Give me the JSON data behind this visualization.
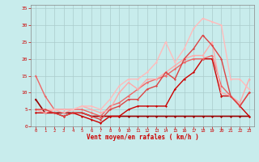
{
  "background_color": "#c8ecec",
  "grid_color": "#aacccc",
  "xlabel": "Vent moyen/en rafales ( km/h )",
  "xlabel_color": "#cc0000",
  "tick_color": "#cc0000",
  "spine_color": "#888888",
  "xlim": [
    -0.5,
    23.5
  ],
  "ylim": [
    0,
    36
  ],
  "yticks": [
    0,
    5,
    10,
    15,
    20,
    25,
    30,
    35
  ],
  "xticks": [
    0,
    1,
    2,
    3,
    4,
    5,
    6,
    7,
    8,
    9,
    10,
    11,
    12,
    13,
    14,
    15,
    16,
    17,
    18,
    19,
    20,
    21,
    22,
    23
  ],
  "series": [
    {
      "x": [
        0,
        1,
        2,
        3,
        4,
        5,
        6,
        7,
        8,
        9,
        10,
        11,
        12,
        13,
        14,
        15,
        16,
        17,
        18,
        19,
        20,
        21,
        22,
        23
      ],
      "y": [
        8,
        4,
        4,
        4,
        4,
        4,
        3,
        3,
        3,
        3,
        3,
        3,
        3,
        3,
        3,
        3,
        3,
        3,
        3,
        3,
        3,
        3,
        3,
        3
      ],
      "color": "#990000",
      "lw": 1.2,
      "marker": "D",
      "ms": 1.5
    },
    {
      "x": [
        0,
        1,
        2,
        3,
        4,
        5,
        6,
        7,
        8,
        9,
        10,
        11,
        12,
        13,
        14,
        15,
        16,
        17,
        18,
        19,
        20,
        21,
        22,
        23
      ],
      "y": [
        4,
        4,
        4,
        3,
        4,
        3,
        2,
        1,
        3,
        3,
        5,
        6,
        6,
        6,
        6,
        11,
        14,
        16,
        20,
        20,
        9,
        9,
        6,
        3
      ],
      "color": "#cc0000",
      "lw": 1.0,
      "marker": "D",
      "ms": 1.5
    },
    {
      "x": [
        0,
        1,
        2,
        3,
        4,
        5,
        6,
        7,
        8,
        9,
        10,
        11,
        12,
        13,
        14,
        15,
        16,
        17,
        18,
        19,
        20,
        21,
        22,
        23
      ],
      "y": [
        15,
        9,
        5,
        5,
        5,
        5,
        4,
        3,
        6,
        7,
        9,
        11,
        13,
        14,
        15,
        17,
        19,
        20,
        20,
        21,
        12,
        9,
        6,
        10
      ],
      "color": "#ee6666",
      "lw": 1.0,
      "marker": "D",
      "ms": 1.5
    },
    {
      "x": [
        0,
        1,
        2,
        3,
        4,
        5,
        6,
        7,
        8,
        9,
        10,
        11,
        12,
        13,
        14,
        15,
        16,
        17,
        18,
        19,
        20,
        21,
        22,
        23
      ],
      "y": [
        5,
        4,
        5,
        4,
        5,
        6,
        5,
        4,
        5,
        10,
        13,
        11,
        14,
        14,
        16,
        18,
        20,
        21,
        21,
        25,
        10,
        9,
        7,
        14
      ],
      "color": "#ffaaaa",
      "lw": 1.0,
      "marker": "D",
      "ms": 1.5
    },
    {
      "x": [
        0,
        1,
        2,
        3,
        4,
        5,
        6,
        7,
        8,
        9,
        10,
        11,
        12,
        13,
        14,
        15,
        16,
        17,
        18,
        19,
        20,
        21,
        22,
        23
      ],
      "y": [
        5,
        5,
        5,
        5,
        5,
        6,
        6,
        5,
        8,
        12,
        14,
        14,
        16,
        19,
        25,
        19,
        23,
        29,
        32,
        31,
        30,
        14,
        14,
        11
      ],
      "color": "#ffbbbb",
      "lw": 1.0,
      "marker": "D",
      "ms": 1.5
    },
    {
      "x": [
        0,
        1,
        2,
        3,
        4,
        5,
        6,
        7,
        8,
        9,
        10,
        11,
        12,
        13,
        14,
        15,
        16,
        17,
        18,
        19,
        20,
        21,
        22,
        23
      ],
      "y": [
        5,
        5,
        4,
        3,
        4,
        4,
        3,
        2,
        5,
        6,
        8,
        8,
        11,
        12,
        16,
        14,
        20,
        23,
        27,
        24,
        20,
        9,
        6,
        10
      ],
      "color": "#dd4444",
      "lw": 1.0,
      "marker": "D",
      "ms": 1.5
    }
  ]
}
